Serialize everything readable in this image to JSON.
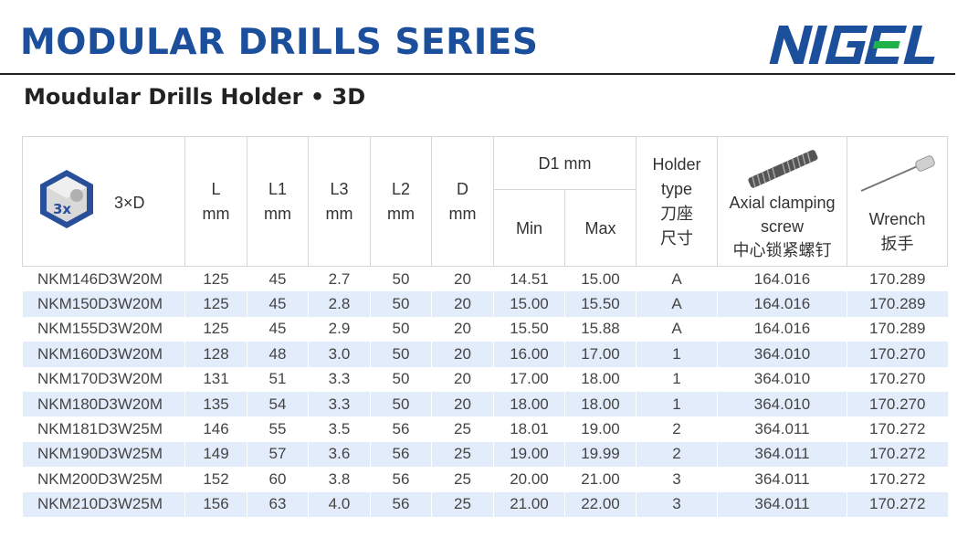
{
  "header": {
    "title": "MODULAR DRILLS SERIES",
    "brand": "NIGEL",
    "subtitle": "Moudular Drills Holder • 3D"
  },
  "colors": {
    "title": "#1b4f9c",
    "brand": "#1b4f9c",
    "brand_accent": "#20b24a",
    "row_alt": "#e3ecfa"
  },
  "columns": {
    "depth": {
      "badge": "3x",
      "label": "3×D"
    },
    "L": [
      "L",
      "mm"
    ],
    "L1": [
      "L1",
      "mm"
    ],
    "L3": [
      "L3",
      "mm"
    ],
    "L2": [
      "L2",
      "mm"
    ],
    "D": [
      "D",
      "mm"
    ],
    "D1": "D1 mm",
    "min": "Min",
    "max": "Max",
    "holder": [
      "Holder",
      "type",
      "刀座",
      "尺寸"
    ],
    "screw": [
      "Axial clamping",
      "screw",
      "中心锁紧螺钉"
    ],
    "wrench": [
      "Wrench",
      "扳手"
    ]
  },
  "rows": [
    [
      "NKM146D3W20M",
      "125",
      "45",
      "2.7",
      "50",
      "20",
      "14.51",
      "15.00",
      "A",
      "164.016",
      "170.289"
    ],
    [
      "NKM150D3W20M",
      "125",
      "45",
      "2.8",
      "50",
      "20",
      "15.00",
      "15.50",
      "A",
      "164.016",
      "170.289"
    ],
    [
      "NKM155D3W20M",
      "125",
      "45",
      "2.9",
      "50",
      "20",
      "15.50",
      "15.88",
      "A",
      "164.016",
      "170.289"
    ],
    [
      "NKM160D3W20M",
      "128",
      "48",
      "3.0",
      "50",
      "20",
      "16.00",
      "17.00",
      "1",
      "364.010",
      "170.270"
    ],
    [
      "NKM170D3W20M",
      "131",
      "51",
      "3.3",
      "50",
      "20",
      "17.00",
      "18.00",
      "1",
      "364.010",
      "170.270"
    ],
    [
      "NKM180D3W20M",
      "135",
      "54",
      "3.3",
      "50",
      "20",
      "18.00",
      "18.00",
      "1",
      "364.010",
      "170.270"
    ],
    [
      "NKM181D3W25M",
      "146",
      "55",
      "3.5",
      "56",
      "25",
      "18.01",
      "19.00",
      "2",
      "364.011",
      "170.272"
    ],
    [
      "NKM190D3W25M",
      "149",
      "57",
      "3.6",
      "56",
      "25",
      "19.00",
      "19.99",
      "2",
      "364.011",
      "170.272"
    ],
    [
      "NKM200D3W25M",
      "152",
      "60",
      "3.8",
      "56",
      "25",
      "20.00",
      "21.00",
      "3",
      "364.011",
      "170.272"
    ],
    [
      "NKM210D3W25M",
      "156",
      "63",
      "4.0",
      "56",
      "25",
      "21.00",
      "22.00",
      "3",
      "364.011",
      "170.272"
    ]
  ]
}
